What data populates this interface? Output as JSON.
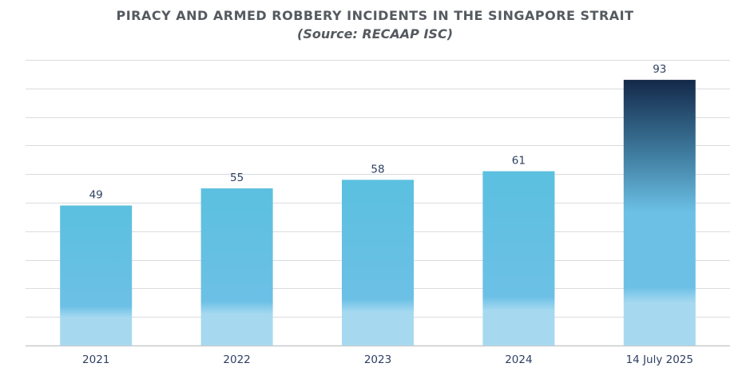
{
  "chart_data": {
    "type": "bar",
    "title": "PIRACY AND ARMED ROBBERY INCIDENTS IN THE SINGAPORE STRAIT",
    "subtitle": "(Source: RECAAP ISC)",
    "categories": [
      "2021",
      "2022",
      "2023",
      "2024",
      "14 July 2025"
    ],
    "values": [
      49,
      55,
      58,
      61,
      93
    ],
    "xlabel": "",
    "ylabel": "",
    "ylim": [
      0,
      100
    ],
    "grid": true,
    "data_labels": true,
    "colors": {
      "bar_light": "#a6d9f0",
      "bar_mid": "#6cc0e6",
      "bar_top": "#5bc0e0",
      "highlight_top": "#14294a",
      "highlight_mid": "#3f7c9f",
      "grid": "#d9dcdf",
      "axis": "#c7cacd",
      "label_text": "#2f3f63",
      "title_text": "#555a60"
    }
  }
}
